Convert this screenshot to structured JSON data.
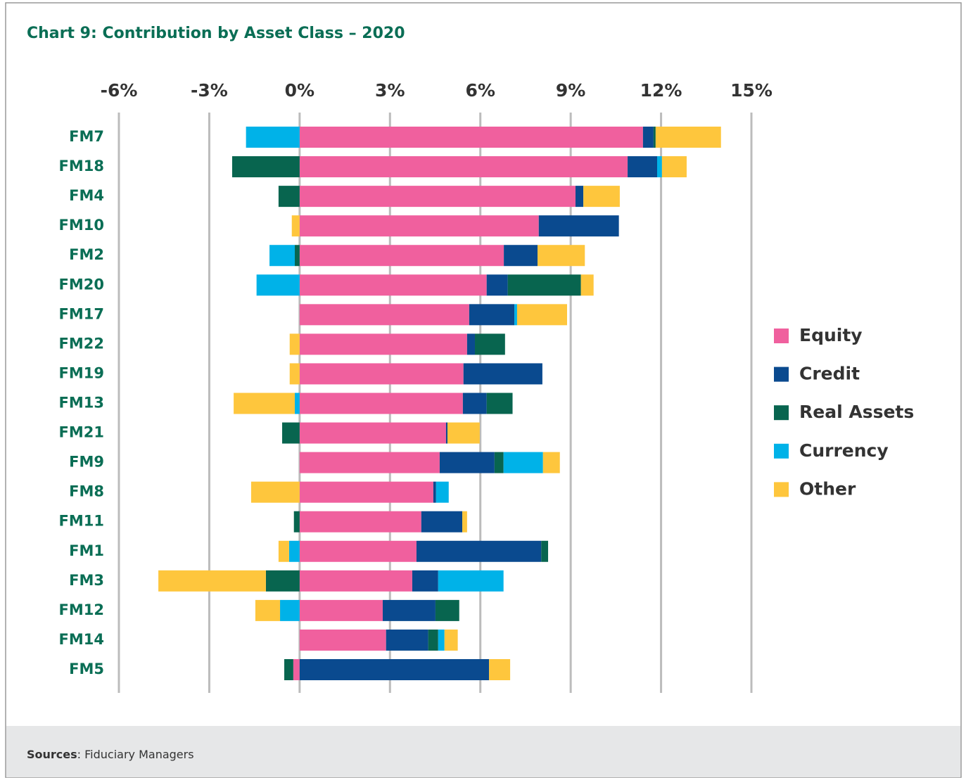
{
  "chart_data": {
    "type": "bar",
    "orientation": "horizontal",
    "stacked": true,
    "title": "Chart 9: Contribution by Asset Class – 2020",
    "source_label": "Sources",
    "source_text": ": Fiduciary Managers",
    "categories": [
      "FM7",
      "FM18",
      "FM4",
      "FM10",
      "FM2",
      "FM20",
      "FM17",
      "FM22",
      "FM19",
      "FM13",
      "FM21",
      "FM9",
      "FM8",
      "FM11",
      "FM1",
      "FM3",
      "FM12",
      "FM14",
      "FM5"
    ],
    "xlim": [
      -6,
      15
    ],
    "xticks": [
      {
        "value": -6,
        "label": "-6%"
      },
      {
        "value": -3,
        "label": "-3%"
      },
      {
        "value": 0,
        "label": "0%"
      },
      {
        "value": 3,
        "label": "3%"
      },
      {
        "value": 6,
        "label": "6%"
      },
      {
        "value": 9,
        "label": "9%"
      },
      {
        "value": 12,
        "label": "12%"
      },
      {
        "value": 15,
        "label": "15%"
      }
    ],
    "grid": true,
    "legend": "right",
    "series": [
      {
        "name": "Equity",
        "color": "#f0609e",
        "values": [
          11.4,
          10.89,
          9.16,
          7.94,
          6.78,
          6.21,
          5.63,
          5.56,
          5.44,
          5.42,
          4.86,
          4.65,
          4.44,
          4.04,
          3.88,
          3.74,
          2.76,
          2.87,
          -0.21
        ]
      },
      {
        "name": "Credit",
        "color": "#0a4a8f",
        "values": [
          0.35,
          0.98,
          0.26,
          2.66,
          1.12,
          0.7,
          1.5,
          0.26,
          2.62,
          0.79,
          0.05,
          1.82,
          0.09,
          1.36,
          4.14,
          0.86,
          1.75,
          1.4,
          6.29
        ]
      },
      {
        "name": "Real Assets",
        "color": "#08654f",
        "values": [
          0.07,
          -2.24,
          -0.7,
          0,
          -0.16,
          2.43,
          0,
          1.0,
          0,
          0.86,
          -0.58,
          0.3,
          0,
          -0.19,
          0.23,
          -1.12,
          0.79,
          0.33,
          -0.3
        ]
      },
      {
        "name": "Currency",
        "color": "#00b2e8",
        "values": [
          -1.78,
          0.16,
          0,
          0,
          -0.84,
          -1.43,
          0.09,
          0,
          0,
          -0.16,
          0,
          1.31,
          0.42,
          0,
          -0.35,
          2.17,
          -0.65,
          0.21,
          0
        ]
      },
      {
        "name": "Other",
        "color": "#fec63d",
        "values": [
          2.17,
          0.82,
          1.21,
          -0.26,
          1.57,
          0.42,
          1.66,
          -0.33,
          -0.33,
          -2.03,
          1.07,
          0.56,
          -1.61,
          0.16,
          -0.35,
          -3.57,
          -0.82,
          0.44,
          0.7
        ]
      }
    ]
  }
}
